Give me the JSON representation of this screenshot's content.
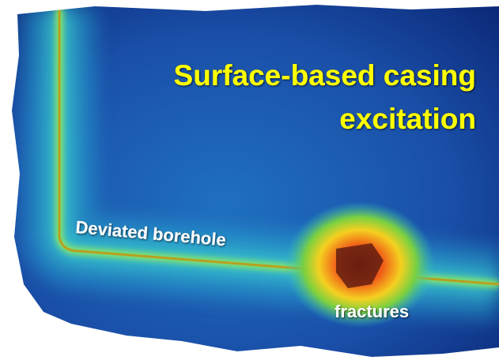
{
  "title": {
    "lines": [
      "Surface-based casing",
      "excitation"
    ]
  },
  "labels": {
    "borehole": "Deviated borehole",
    "fractures": "fractures"
  }
}
